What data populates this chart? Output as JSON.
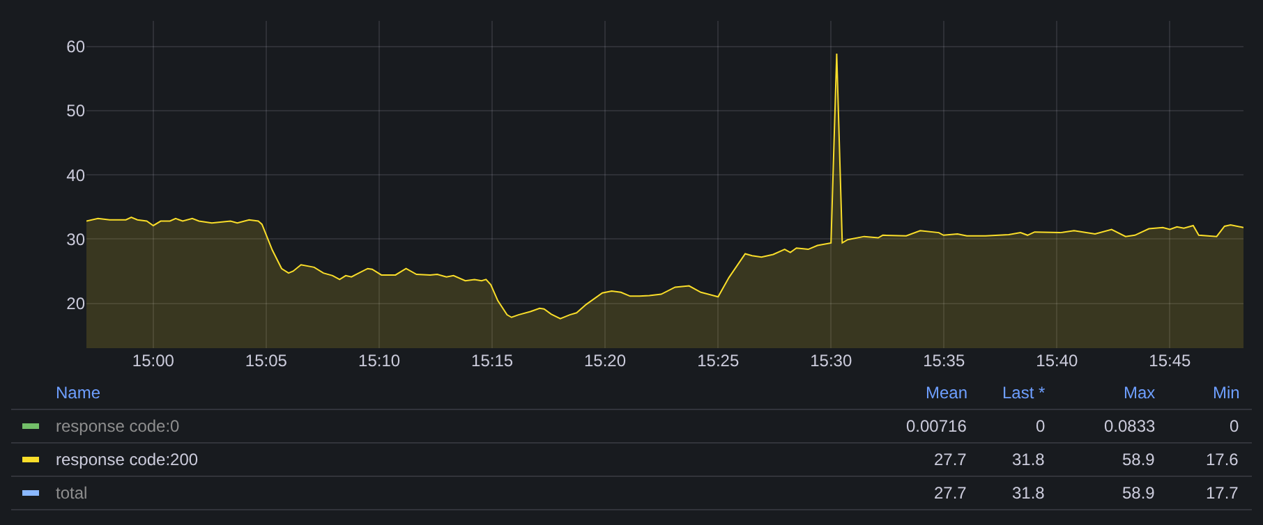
{
  "chart_data": {
    "type": "area",
    "x": [
      14.9507,
      14.9592,
      14.9678,
      14.9798,
      14.9838,
      14.9883,
      14.9952,
      15.0,
      15.0055,
      15.0123,
      15.0165,
      15.0217,
      15.0288,
      15.0337,
      15.0432,
      15.057,
      15.062,
      15.0707,
      15.0775,
      15.0802,
      15.0878,
      15.0947,
      15.0998,
      15.1032,
      15.109,
      15.1187,
      15.1255,
      15.1323,
      15.1375,
      15.142,
      15.1462,
      15.1582,
      15.1615,
      15.1683,
      15.1787,
      15.1865,
      15.1942,
      15.2043,
      15.2095,
      15.2163,
      15.2215,
      15.2302,
      15.237,
      15.2422,
      15.2455,
      15.249,
      15.2542,
      15.261,
      15.2643,
      15.2695,
      15.2782,
      15.285,
      15.2883,
      15.2935,
      15.3003,
      15.3073,
      15.3123,
      15.3193,
      15.3313,
      15.3382,
      15.345,
      15.3518,
      15.3587,
      15.366,
      15.3747,
      15.385,
      15.3953,
      15.404,
      15.4167,
      15.4247,
      15.4367,
      15.4418,
      15.4487,
      15.4573,
      15.4658,
      15.47,
      15.4745,
      15.4832,
      15.49,
      15.5,
      15.5042,
      15.5083,
      15.5123,
      15.5245,
      15.5348,
      15.5382,
      15.5555,
      15.5658,
      15.5795,
      15.583,
      15.5933,
      15.6002,
      15.614,
      15.6312,
      15.6398,
      15.645,
      15.6502,
      15.669,
      15.6793,
      15.6948,
      15.707,
      15.7173,
      15.7242,
      15.7345,
      15.7448,
      15.75,
      15.7552,
      15.7603,
      15.7672,
      15.7713,
      15.7845,
      15.7903,
      15.7948,
      15.8043
    ],
    "series": [
      {
        "name": "response code:0",
        "color": "#73bf69",
        "values": [
          null,
          null,
          null,
          null,
          null,
          null,
          null,
          null,
          null,
          null,
          null,
          null,
          null,
          null,
          null,
          null,
          null,
          null,
          null,
          null,
          null,
          null,
          null,
          null,
          null,
          null,
          null,
          null,
          null,
          null,
          null,
          null,
          null,
          null,
          null,
          null,
          null,
          null,
          null,
          null,
          null,
          null,
          null,
          null,
          null,
          null,
          null,
          null,
          null,
          null,
          null,
          null,
          null,
          null,
          null,
          null,
          null,
          null,
          null,
          null,
          null,
          null,
          null,
          null,
          null,
          null,
          null,
          null,
          null,
          null,
          null,
          null,
          null,
          null,
          null,
          null,
          null,
          null,
          null,
          null,
          null,
          null,
          null,
          null,
          null,
          null,
          null,
          null,
          null,
          null,
          null,
          null,
          null,
          null,
          null,
          null,
          null,
          null,
          null,
          null,
          null,
          null,
          null,
          null,
          null,
          null,
          null,
          null,
          null,
          null,
          null,
          null,
          null,
          null
        ]
      },
      {
        "name": "response code:200",
        "color": "#fade2a",
        "values": [
          32.8,
          33.2,
          33.0,
          33.0,
          33.4,
          33.0,
          32.8,
          32.1,
          32.8,
          32.8,
          33.2,
          32.8,
          33.2,
          32.8,
          32.5,
          32.8,
          32.5,
          33.0,
          32.8,
          32.3,
          28.3,
          25.4,
          24.7,
          25.0,
          26.0,
          25.6,
          24.7,
          24.3,
          23.7,
          24.3,
          24.1,
          25.4,
          25.3,
          24.4,
          24.4,
          25.4,
          24.5,
          24.4,
          24.5,
          24.1,
          24.3,
          23.5,
          23.7,
          23.5,
          23.7,
          22.9,
          20.4,
          18.2,
          17.8,
          18.2,
          18.7,
          19.2,
          19.1,
          18.3,
          17.6,
          18.2,
          18.5,
          19.8,
          21.6,
          21.9,
          21.7,
          21.1,
          21.1,
          21.2,
          21.4,
          22.5,
          22.7,
          21.7,
          21.0,
          24.0,
          27.7,
          27.4,
          27.2,
          27.6,
          28.4,
          27.9,
          28.6,
          28.4,
          29.0,
          29.4,
          58.9,
          29.4,
          29.9,
          30.4,
          30.2,
          30.6,
          30.5,
          31.3,
          31.0,
          30.6,
          30.8,
          30.5,
          30.5,
          30.7,
          31.0,
          30.6,
          31.1,
          31.0,
          31.3,
          30.8,
          31.5,
          30.4,
          30.6,
          31.6,
          31.8,
          31.5,
          31.9,
          31.7,
          32.1,
          30.6,
          30.4,
          32.0,
          32.2,
          31.8
        ]
      },
      {
        "name": "total",
        "color": "#8ab8ff",
        "values": [
          null,
          null,
          null,
          null,
          null,
          null,
          null,
          null,
          null,
          null,
          null,
          null,
          null,
          null,
          null,
          null,
          null,
          null,
          null,
          null,
          null,
          null,
          null,
          null,
          null,
          null,
          null,
          null,
          null,
          null,
          null,
          null,
          null,
          null,
          null,
          null,
          null,
          null,
          null,
          null,
          null,
          null,
          null,
          null,
          null,
          null,
          null,
          null,
          null,
          null,
          null,
          null,
          null,
          null,
          null,
          null,
          null,
          null,
          null,
          null,
          null,
          null,
          null,
          null,
          null,
          null,
          null,
          null,
          null,
          null,
          null,
          null,
          null,
          null,
          null,
          null,
          null,
          null,
          null,
          null,
          null,
          null,
          null,
          null,
          null,
          null,
          null,
          null,
          null,
          null,
          null,
          null,
          null,
          null,
          null,
          null,
          null,
          null,
          null,
          null,
          null,
          null,
          null,
          null,
          null,
          null,
          null,
          null,
          null,
          null,
          null,
          null,
          null,
          null
        ]
      }
    ],
    "xlim": [
      14.9507,
      15.8043
    ],
    "xticks": [
      {
        "value": 15.0,
        "label": "15:00"
      },
      {
        "value": 15.0833,
        "label": "15:05"
      },
      {
        "value": 15.1667,
        "label": "15:10"
      },
      {
        "value": 15.25,
        "label": "15:15"
      },
      {
        "value": 15.3333,
        "label": "15:20"
      },
      {
        "value": 15.4167,
        "label": "15:25"
      },
      {
        "value": 15.5,
        "label": "15:30"
      },
      {
        "value": 15.5833,
        "label": "15:35"
      },
      {
        "value": 15.6667,
        "label": "15:40"
      },
      {
        "value": 15.75,
        "label": "15:45"
      }
    ],
    "ylim": [
      13,
      64
    ],
    "yticks": [
      20,
      30,
      40,
      50,
      60
    ],
    "grid": true,
    "legend": "bottom",
    "marker": "none",
    "line_style": "solid",
    "annotations": [
      "Name",
      "Mean",
      "Last *",
      "Max",
      "Min",
      "0.00716",
      "0",
      "0.0833",
      "0",
      "27.7",
      "31.8",
      "58.9",
      "17.6",
      "27.7",
      "31.8",
      "58.9",
      "17.7"
    ]
  }
}
